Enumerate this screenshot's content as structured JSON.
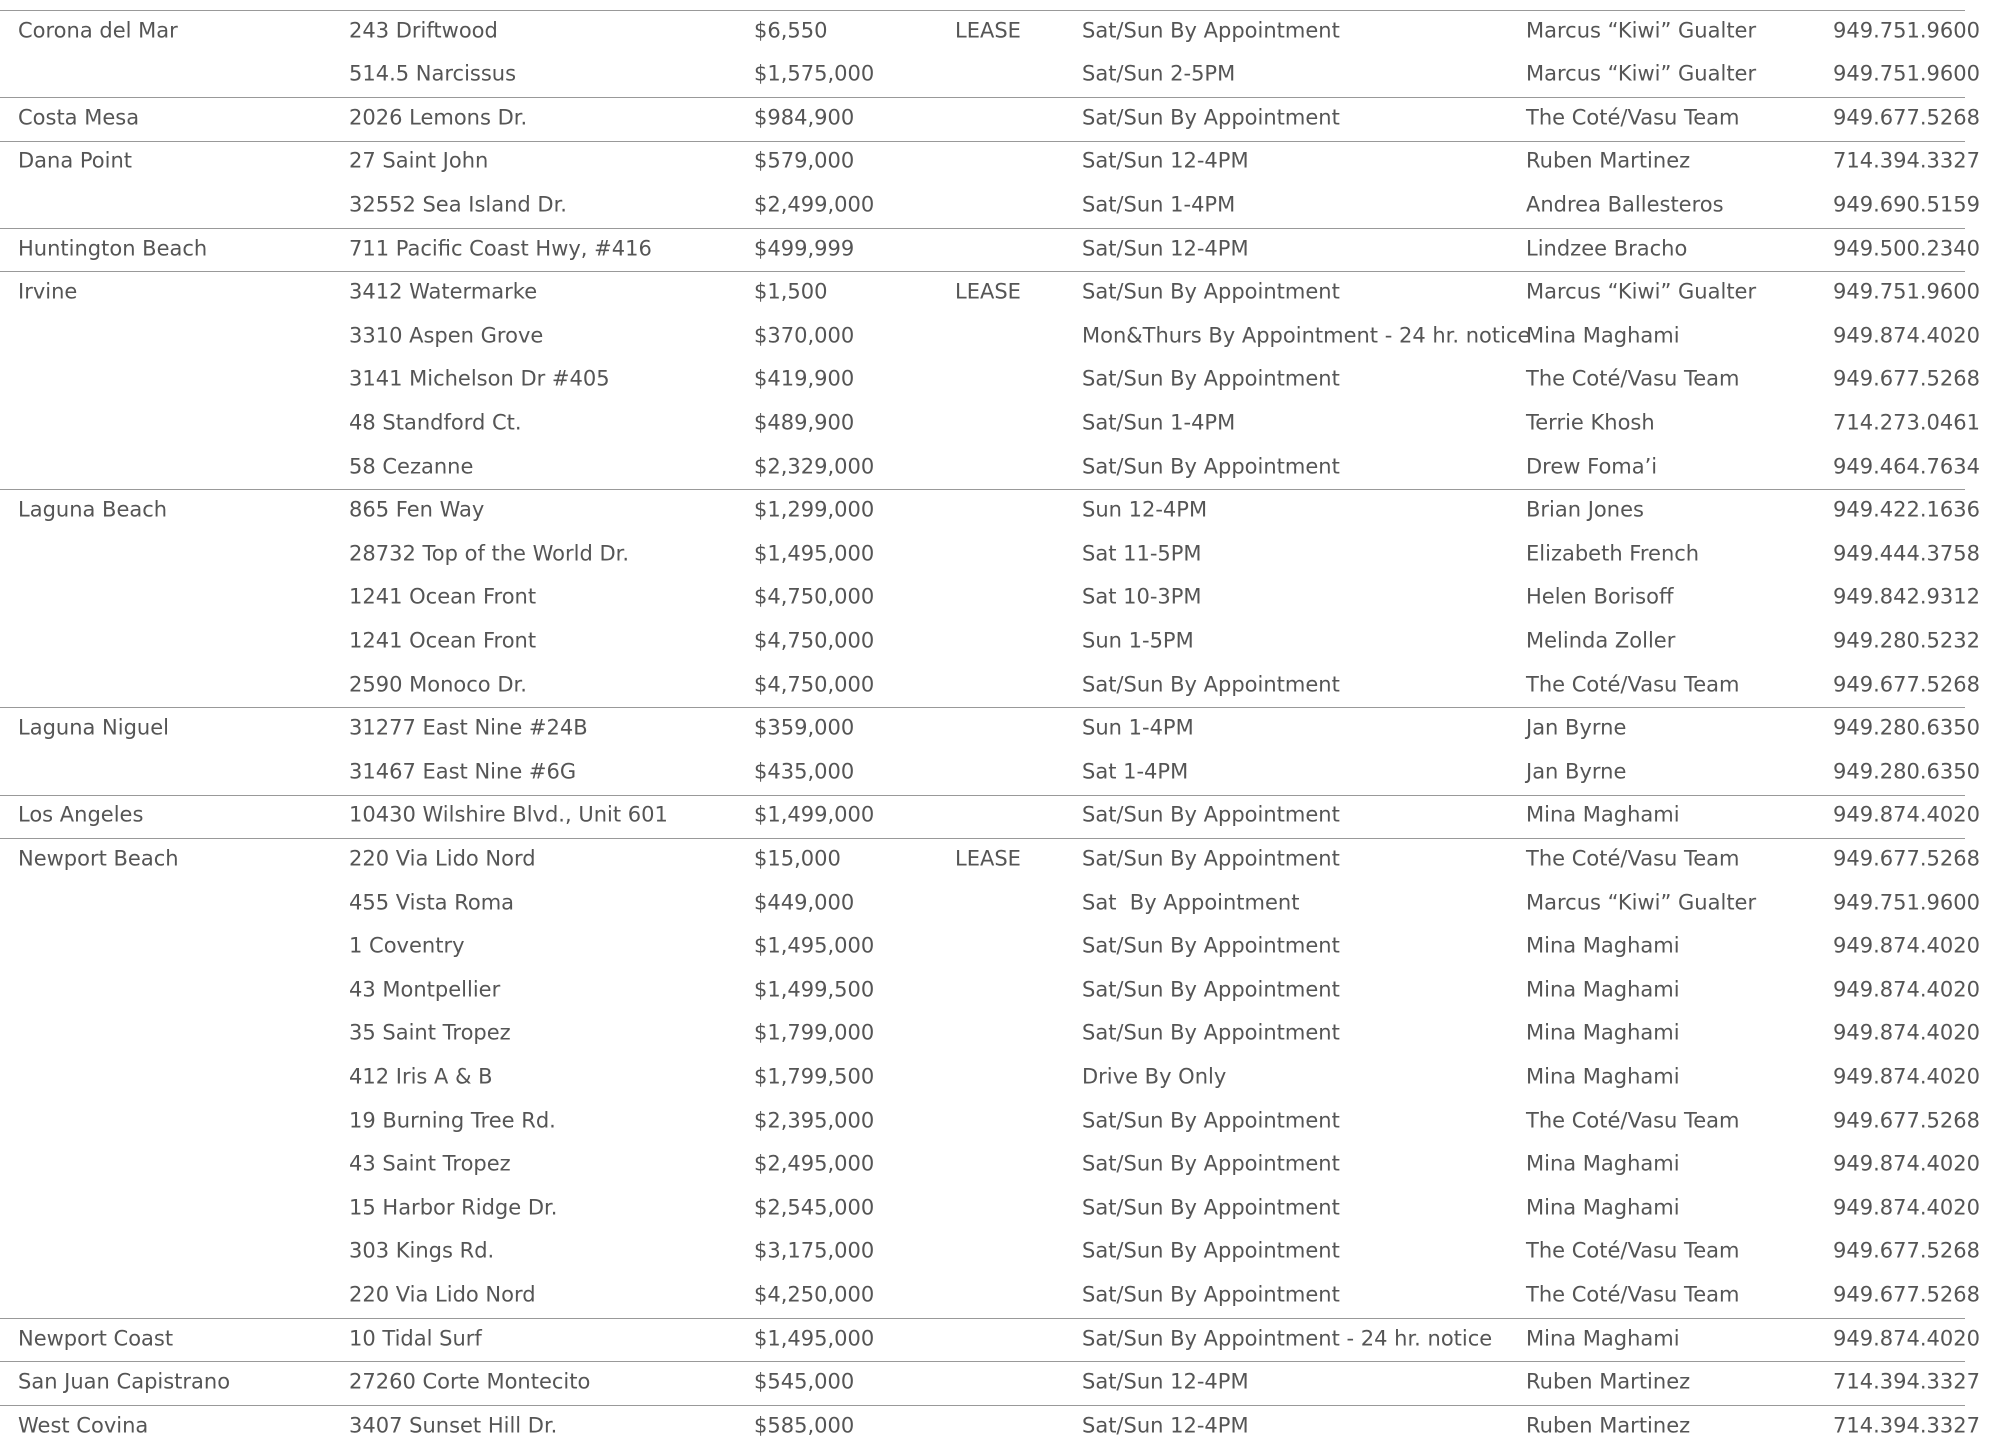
{
  "groups": [
    {
      "city": "Corona del Mar",
      "listings": [
        {
          "address": "243 Driftwood",
          "price": "$6,550",
          "lease": "LEASE",
          "hours": "Sat/Sun By Appointment",
          "agent": "Marcus “Kiwi” Gualter",
          "phone": "949.751.9600"
        },
        {
          "address": "514.5 Narcissus",
          "price": "$1,575,000",
          "hours": "Sat/Sun 2-5PM",
          "agent": "Marcus “Kiwi” Gualter",
          "phone": "949.751.9600"
        }
      ]
    },
    {
      "city": "Costa Mesa",
      "listings": [
        {
          "address": "2026 Lemons Dr.",
          "price": "$984,900",
          "hours": "Sat/Sun By Appointment",
          "agent": "The Coté/Vasu Team",
          "phone": "949.677.5268"
        }
      ]
    },
    {
      "city": "Dana Point",
      "listings": [
        {
          "address": "27 Saint John",
          "price": "$579,000",
          "hours": "Sat/Sun 12-4PM",
          "agent": "Ruben Martinez",
          "phone": "714.394.3327"
        },
        {
          "address": "32552 Sea Island Dr.",
          "price": "$2,499,000",
          "hours": "Sat/Sun 1-4PM",
          "agent": "Andrea Ballesteros",
          "phone": "949.690.5159"
        }
      ]
    },
    {
      "city": "Huntington Beach",
      "listings": [
        {
          "address": "711 Pacific Coast Hwy, #416",
          "price": "$499,999",
          "hours": "Sat/Sun 12-4PM",
          "agent": "Lindzee Bracho",
          "phone": "949.500.2340"
        }
      ]
    },
    {
      "city": "Irvine",
      "listings": [
        {
          "address": "3412 Watermarke",
          "price": "$1,500",
          "lease": "LEASE",
          "hours": "Sat/Sun By Appointment",
          "agent": "Marcus “Kiwi” Gualter",
          "phone": "949.751.9600"
        },
        {
          "address": "3310 Aspen Grove",
          "price": "$370,000",
          "hours": "Mon&Thurs By Appointment - 24 hr. notice",
          "agent": "Mina Maghami",
          "phone": "949.874.4020"
        },
        {
          "address": "3141 Michelson Dr #405",
          "price": "$419,900",
          "hours": "Sat/Sun By Appointment",
          "agent": "The Coté/Vasu Team",
          "phone": "949.677.5268"
        },
        {
          "address": "48 Standford Ct.",
          "price": "$489,900",
          "hours": "Sat/Sun 1-4PM",
          "agent": "Terrie Khosh",
          "phone": "714.273.0461"
        },
        {
          "address": "58 Cezanne",
          "price": "$2,329,000",
          "hours": "Sat/Sun By Appointment",
          "agent": "Drew Foma’i",
          "phone": "949.464.7634"
        }
      ]
    },
    {
      "city": "Laguna Beach",
      "listings": [
        {
          "address": "865 Fen Way",
          "price": "$1,299,000",
          "hours": "Sun 12-4PM",
          "agent": "Brian Jones",
          "phone": "949.422.1636"
        },
        {
          "address": "28732 Top of the World Dr.",
          "price": "$1,495,000",
          "hours": "Sat 11-5PM",
          "agent": "Elizabeth French",
          "phone": "949.444.3758"
        },
        {
          "address": "1241 Ocean Front",
          "price": "$4,750,000",
          "hours": "Sat 10-3PM",
          "agent": "Helen Borisoff",
          "phone": "949.842.9312"
        },
        {
          "address": "1241 Ocean Front",
          "price": "$4,750,000",
          "hours": "Sun 1-5PM",
          "agent": "Melinda Zoller",
          "phone": "949.280.5232"
        },
        {
          "address": "2590 Monoco Dr.",
          "price": "$4,750,000",
          "hours": "Sat/Sun By Appointment",
          "agent": "The Coté/Vasu Team",
          "phone": "949.677.5268"
        }
      ]
    },
    {
      "city": "Laguna Niguel",
      "listings": [
        {
          "address": "31277 East Nine #24B",
          "price": "$359,000",
          "hours": "Sun 1-4PM",
          "agent": "Jan Byrne",
          "phone": "949.280.6350"
        },
        {
          "address": "31467 East Nine #6G",
          "price": "$435,000",
          "hours": "Sat 1-4PM",
          "agent": "Jan Byrne",
          "phone": "949.280.6350"
        }
      ]
    },
    {
      "city": "Los Angeles",
      "listings": [
        {
          "address": "10430 Wilshire Blvd., Unit 601",
          "price": "$1,499,000",
          "hours": "Sat/Sun By Appointment",
          "agent": "Mina Maghami",
          "phone": "949.874.4020"
        }
      ]
    },
    {
      "city": "Newport Beach",
      "listings": [
        {
          "address": "220 Via Lido Nord",
          "price": "$15,000",
          "lease": "LEASE",
          "hours": "Sat/Sun By Appointment",
          "agent": "The Coté/Vasu Team",
          "phone": "949.677.5268"
        },
        {
          "address": "455 Vista Roma",
          "price": "$449,000",
          "hours": "Sat  By Appointment",
          "agent": "Marcus “Kiwi” Gualter",
          "phone": "949.751.9600"
        },
        {
          "address": "1 Coventry",
          "price": "$1,495,000",
          "hours": "Sat/Sun By Appointment",
          "agent": "Mina Maghami",
          "phone": "949.874.4020"
        },
        {
          "address": "43 Montpellier",
          "price": "$1,499,500",
          "hours": "Sat/Sun By Appointment",
          "agent": "Mina Maghami",
          "phone": "949.874.4020"
        },
        {
          "address": "35 Saint Tropez",
          "price": "$1,799,000",
          "hours": "Sat/Sun By Appointment",
          "agent": "Mina Maghami",
          "phone": "949.874.4020"
        },
        {
          "address": "412 Iris A & B",
          "price": "$1,799,500",
          "hours": "Drive By Only",
          "agent": "Mina Maghami",
          "phone": "949.874.4020"
        },
        {
          "address": "19 Burning Tree Rd.",
          "price": "$2,395,000",
          "hours": "Sat/Sun By Appointment",
          "agent": "The Coté/Vasu Team",
          "phone": "949.677.5268"
        },
        {
          "address": "43 Saint Tropez",
          "price": "$2,495,000",
          "hours": "Sat/Sun By Appointment",
          "agent": "Mina Maghami",
          "phone": "949.874.4020"
        },
        {
          "address": "15 Harbor Ridge Dr.",
          "price": "$2,545,000",
          "hours": "Sat/Sun By Appointment",
          "agent": "Mina Maghami",
          "phone": "949.874.4020"
        },
        {
          "address": "303 Kings Rd.",
          "price": "$3,175,000",
          "hours": "Sat/Sun By Appointment",
          "agent": "The Coté/Vasu Team",
          "phone": "949.677.5268"
        },
        {
          "address": "220 Via Lido Nord",
          "price": "$4,250,000",
          "hours": "Sat/Sun By Appointment",
          "agent": "The Coté/Vasu Team",
          "phone": "949.677.5268"
        }
      ]
    },
    {
      "city": "Newport Coast",
      "listings": [
        {
          "address": "10 Tidal Surf",
          "price": "$1,495,000",
          "hours": "Sat/Sun By Appointment - 24 hr. notice",
          "agent": "Mina Maghami",
          "phone": "949.874.4020"
        }
      ]
    },
    {
      "city": "San Juan Capistrano",
      "listings": [
        {
          "address": "27260 Corte Montecito",
          "price": "$545,000",
          "hours": "Sat/Sun 12-4PM",
          "agent": "Ruben Martinez",
          "phone": "714.394.3327"
        }
      ]
    },
    {
      "city": "West Covina",
      "listings": [
        {
          "address": "3407 Sunset Hill Dr.",
          "price": "$585,000",
          "hours": "Sat/Sun 12-4PM",
          "agent": "Ruben Martinez",
          "phone": "714.394.3327"
        }
      ]
    }
  ]
}
